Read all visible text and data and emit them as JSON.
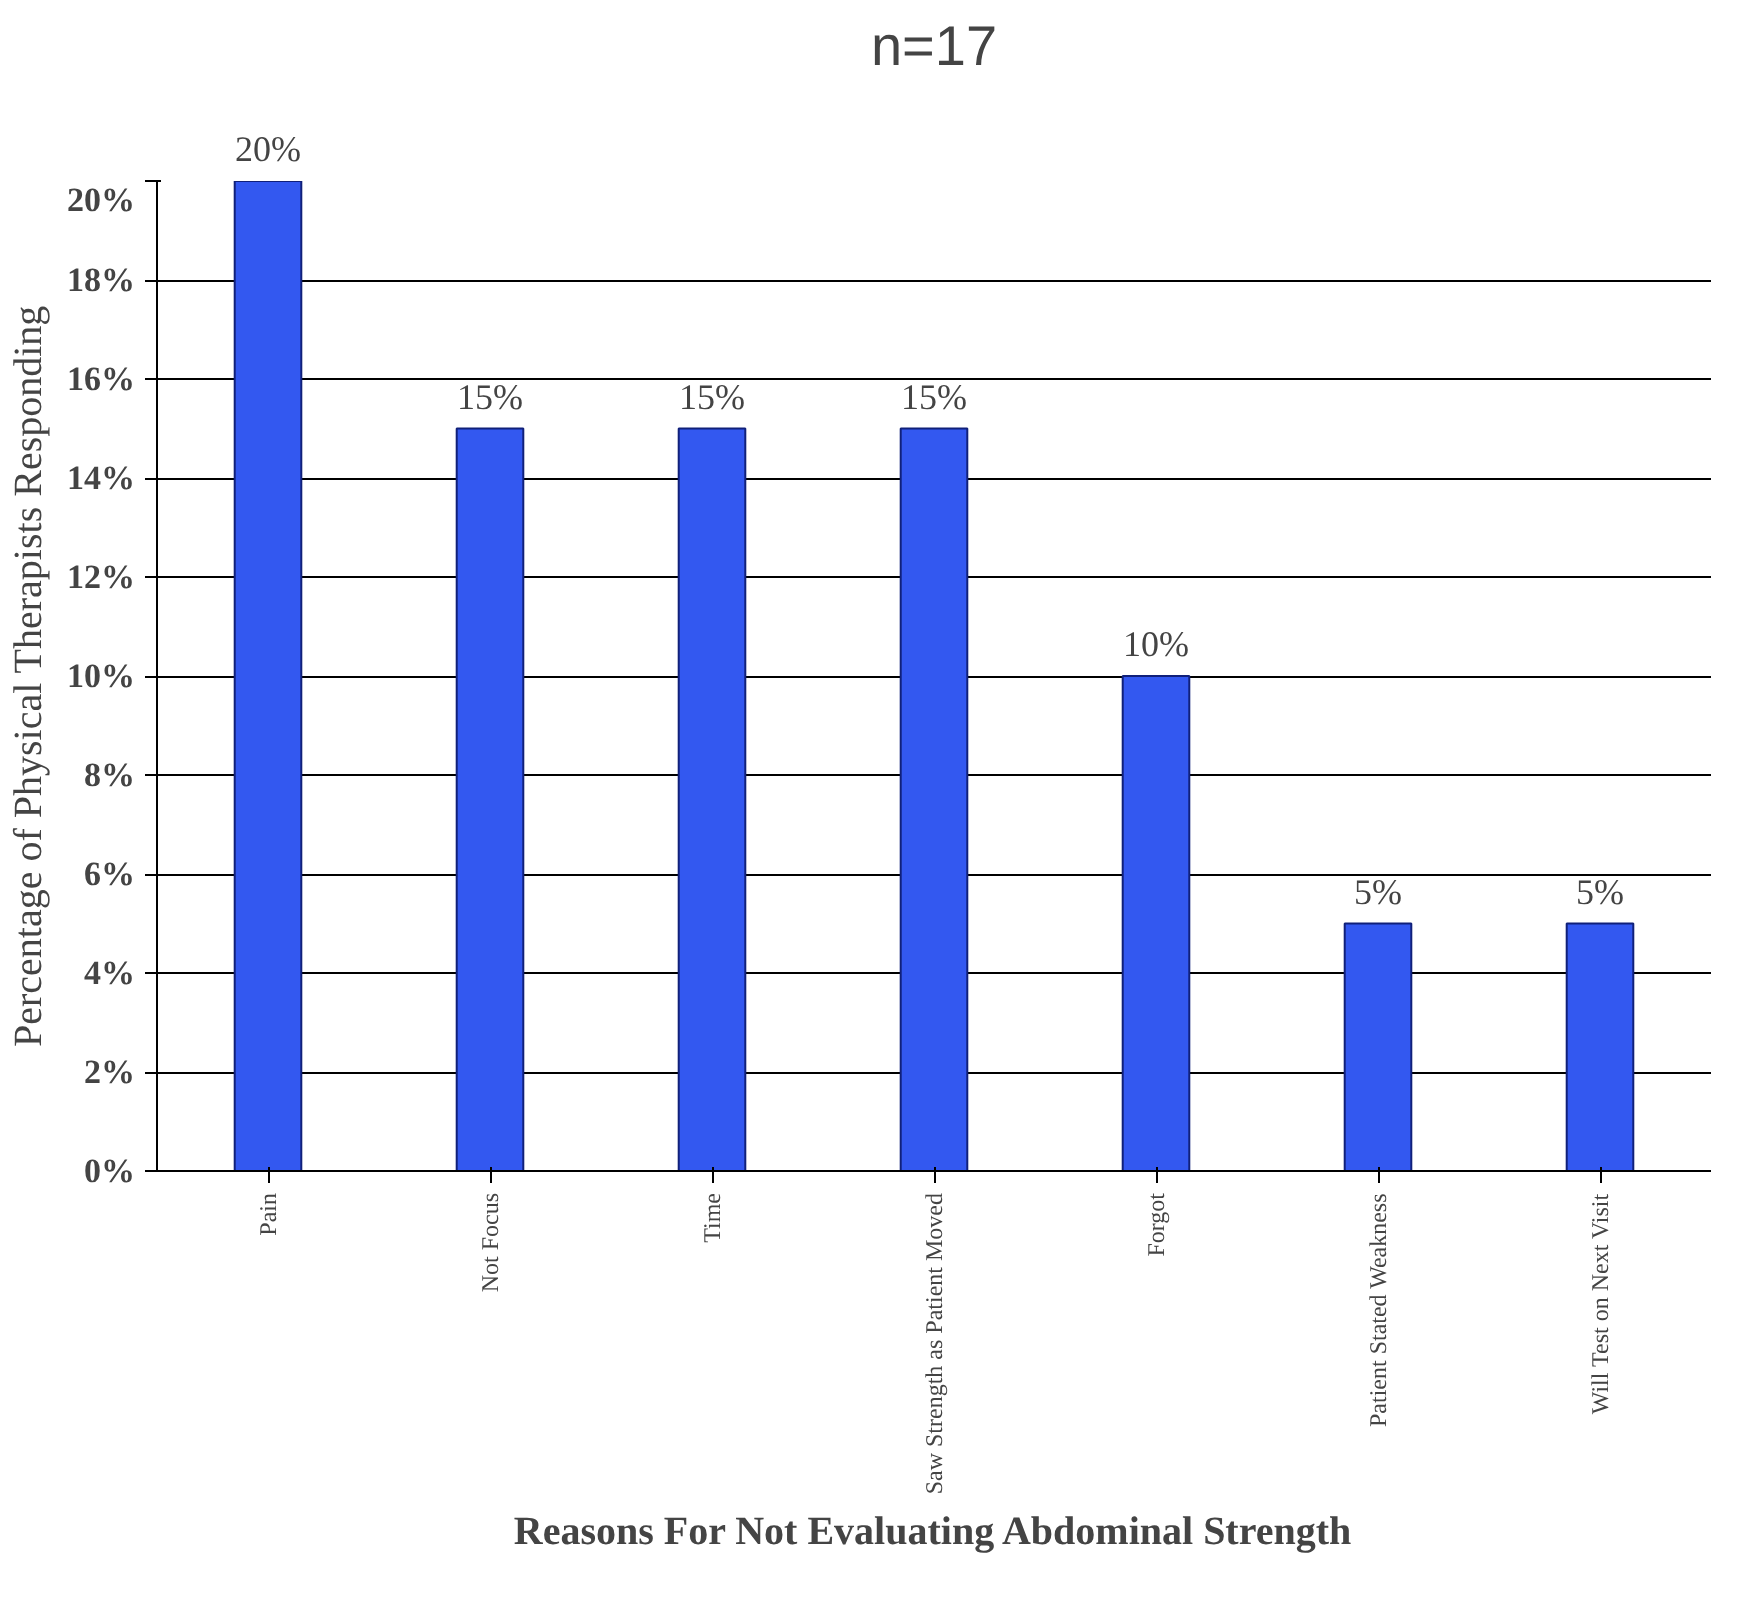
{
  "chart_data": {
    "type": "bar",
    "title": "n=17",
    "xlabel": "Reasons For Not Evaluating Abdominal Strength",
    "ylabel": "Percentage of Physical Therapists Responding",
    "categories": [
      "Pain",
      "Not Focus",
      "Time",
      "Saw Strength as Patient Moved",
      "Forgot",
      "Patient Stated Weakness",
      "Will Test on Next Visit"
    ],
    "values": [
      20,
      15,
      15,
      15,
      10,
      5,
      5
    ],
    "color": "#3358f0",
    "value_labels": [
      "20%",
      "15%",
      "15%",
      "15%",
      "10%",
      "5%",
      "5%"
    ],
    "ylim": [
      0,
      20
    ],
    "yticks": [
      {
        "value": 0,
        "label": "0%"
      },
      {
        "value": 2,
        "label": "2%"
      },
      {
        "value": 4,
        "label": "4%"
      },
      {
        "value": 6,
        "label": "6%"
      },
      {
        "value": 8,
        "label": "8%"
      },
      {
        "value": 10,
        "label": "10%"
      },
      {
        "value": 12,
        "label": "12%"
      },
      {
        "value": 14,
        "label": "14%"
      },
      {
        "value": 16,
        "label": "16%"
      },
      {
        "value": 18,
        "label": "18%"
      },
      {
        "value": 20,
        "label": "20%"
      }
    ],
    "grid": "y"
  }
}
